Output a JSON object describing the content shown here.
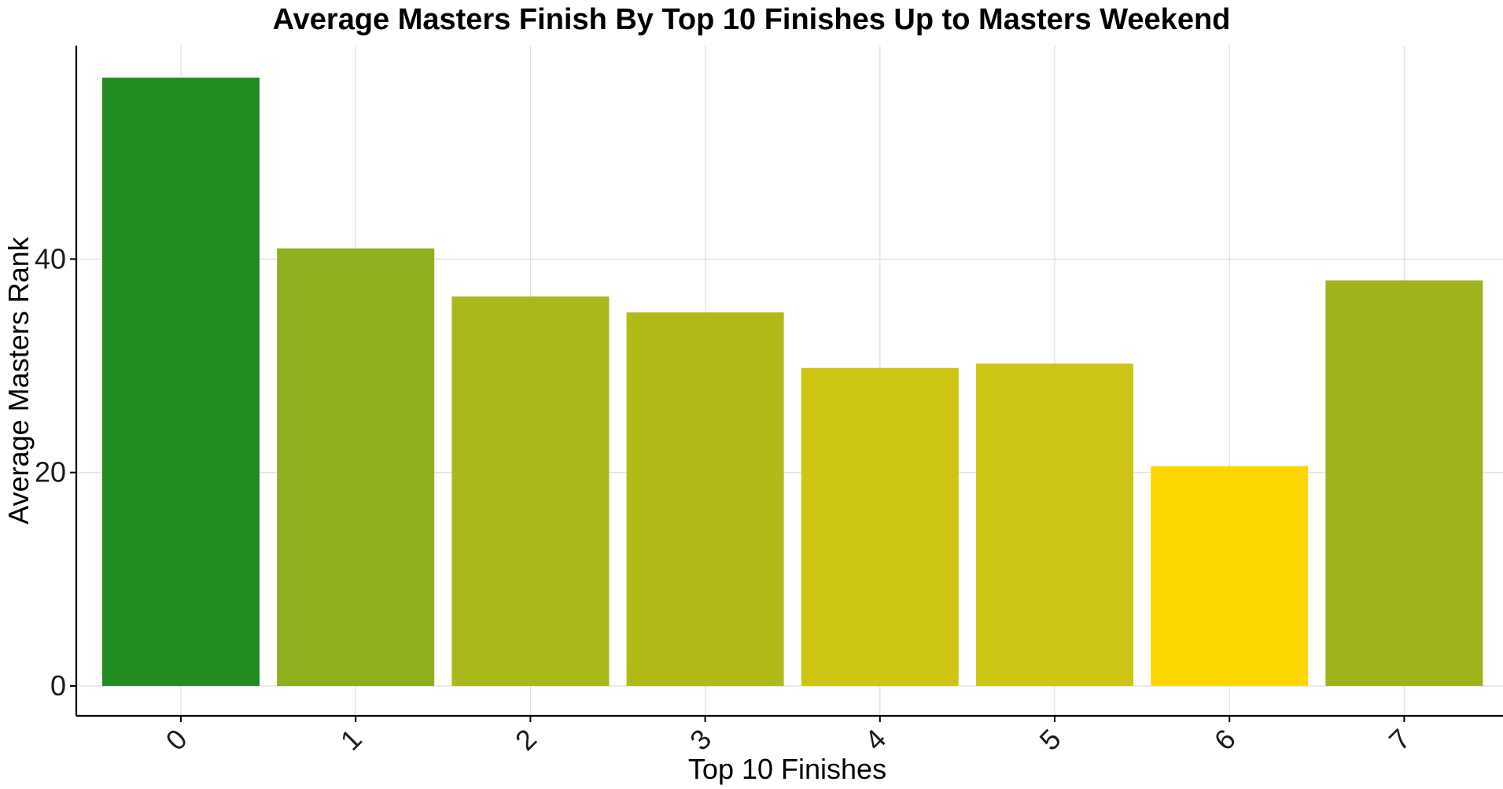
{
  "chart_data": {
    "type": "bar",
    "title": "Average Masters Finish By Top 10 Finishes Up to Masters Weekend",
    "xlabel": "Top 10 Finishes",
    "ylabel": "Average Masters Rank",
    "categories": [
      "0",
      "1",
      "2",
      "3",
      "4",
      "5",
      "6",
      "7"
    ],
    "values": [
      57.0,
      41.0,
      36.5,
      35.0,
      29.8,
      30.2,
      20.6,
      38.0
    ],
    "bar_colors": [
      "#228B22",
      "#8FAF1F",
      "#ABB81A",
      "#B2BA19",
      "#CEC513",
      "#CDC413",
      "#FDD700",
      "#A0B31C"
    ],
    "y_ticks": [
      0,
      20,
      40
    ],
    "ylim": [
      -2.8,
      60.0
    ],
    "grid": true,
    "legend": "none"
  },
  "colors": {
    "gridline": "#DEDEDE",
    "axis": "#000000",
    "background": "#FFFFFF"
  }
}
